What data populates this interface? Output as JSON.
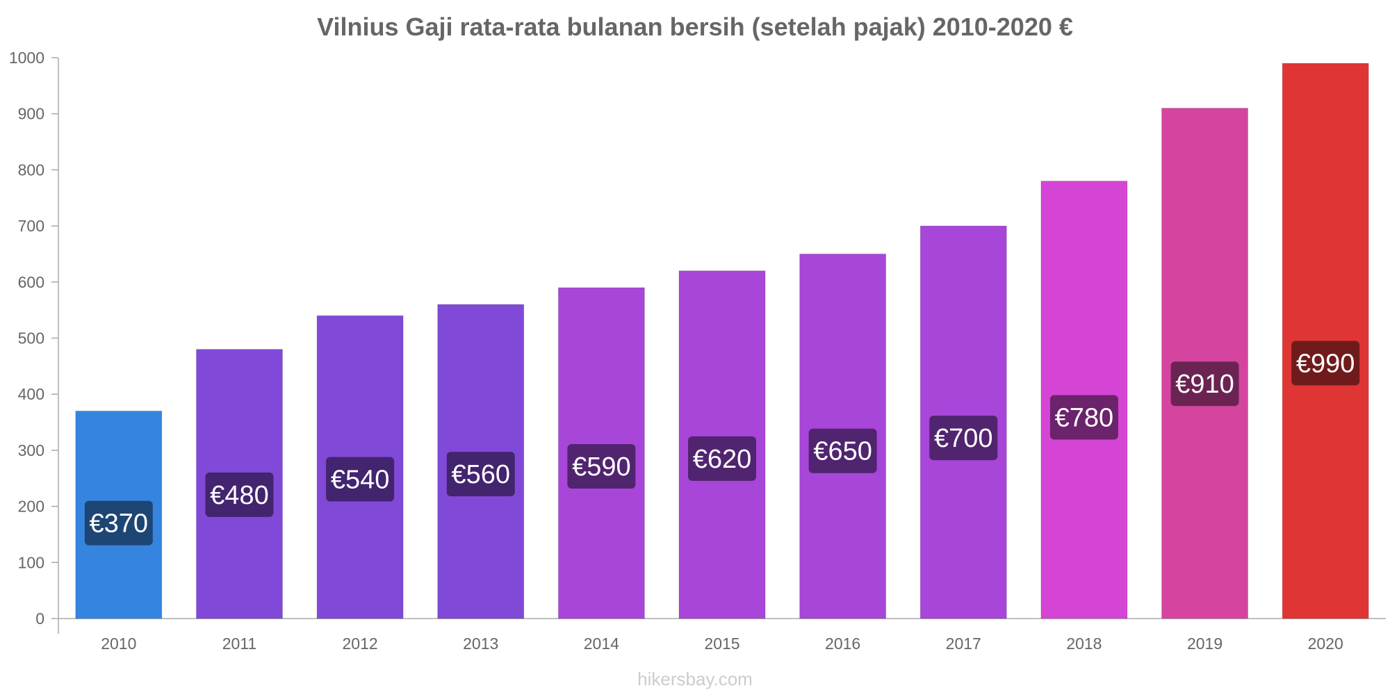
{
  "chart_data": {
    "type": "bar",
    "title": "Vilnius Gaji rata-rata bulanan bersih (setelah pajak) 2010-2020 €",
    "categories": [
      "2010",
      "2011",
      "2012",
      "2013",
      "2014",
      "2015",
      "2016",
      "2017",
      "2018",
      "2019",
      "2020"
    ],
    "values": [
      370,
      480,
      540,
      560,
      590,
      620,
      650,
      700,
      780,
      910,
      990
    ],
    "data_labels": [
      "€370",
      "€480",
      "€540",
      "€560",
      "€590",
      "€620",
      "€650",
      "€700",
      "€780",
      "€910",
      "€990"
    ],
    "bar_colors": [
      "#3585e0",
      "#8149d8",
      "#8149d8",
      "#8149d8",
      "#a746d8",
      "#a746d8",
      "#a746d8",
      "#a746d8",
      "#d545d5",
      "#d5459f",
      "#e03535"
    ],
    "label_box_colors": [
      "#1e4674",
      "#43246f",
      "#43246f",
      "#43246f",
      "#512470",
      "#512470",
      "#512470",
      "#512470",
      "#6b236b",
      "#6b2452",
      "#701b1b"
    ],
    "yticks": [
      "0",
      "100",
      "200",
      "300",
      "400",
      "500",
      "600",
      "700",
      "800",
      "900",
      "1000"
    ],
    "ylim": [
      0,
      1000
    ],
    "xlabel": "",
    "ylabel": "",
    "grid": false,
    "legend": "none"
  },
  "watermark": "hikersbay.com"
}
